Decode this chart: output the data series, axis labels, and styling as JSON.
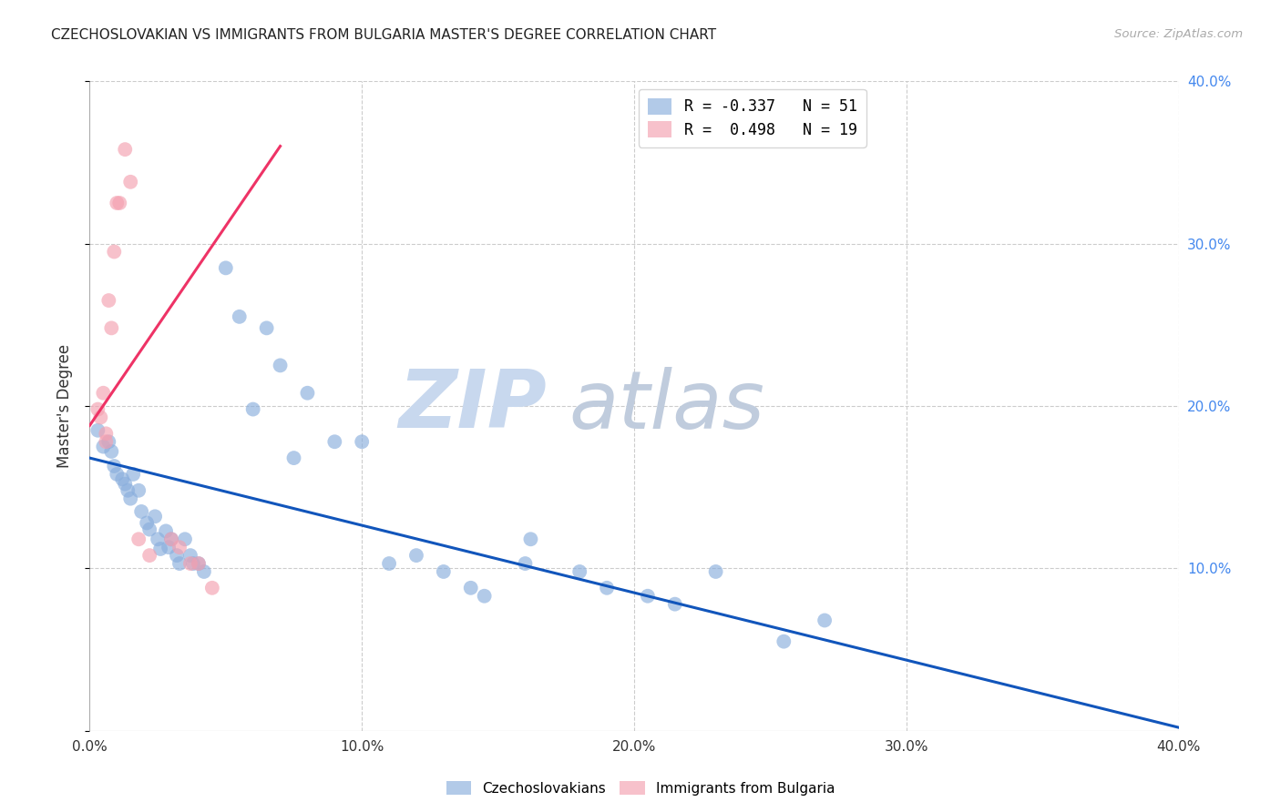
{
  "title": "CZECHOSLOVAKIAN VS IMMIGRANTS FROM BULGARIA MASTER'S DEGREE CORRELATION CHART",
  "source": "Source: ZipAtlas.com",
  "ylabel": "Master's Degree",
  "blue_color": "#89AEDD",
  "pink_color": "#F4A0B0",
  "blue_line_color": "#1155BB",
  "pink_line_color": "#EE3366",
  "grid_color": "#CCCCCC",
  "title_color": "#222222",
  "right_axis_color": "#4488EE",
  "legend_r1": "R = -0.337",
  "legend_n1": "N = 51",
  "legend_r2": "R =  0.498",
  "legend_n2": "N = 19",
  "xlim": [
    0.0,
    0.4
  ],
  "ylim": [
    0.0,
    0.4
  ],
  "blue_scatter": [
    [
      0.003,
      0.185
    ],
    [
      0.005,
      0.175
    ],
    [
      0.007,
      0.178
    ],
    [
      0.008,
      0.172
    ],
    [
      0.009,
      0.163
    ],
    [
      0.01,
      0.158
    ],
    [
      0.012,
      0.155
    ],
    [
      0.013,
      0.152
    ],
    [
      0.014,
      0.148
    ],
    [
      0.015,
      0.143
    ],
    [
      0.016,
      0.158
    ],
    [
      0.018,
      0.148
    ],
    [
      0.019,
      0.135
    ],
    [
      0.021,
      0.128
    ],
    [
      0.022,
      0.124
    ],
    [
      0.024,
      0.132
    ],
    [
      0.025,
      0.118
    ],
    [
      0.026,
      0.112
    ],
    [
      0.028,
      0.123
    ],
    [
      0.029,
      0.113
    ],
    [
      0.03,
      0.118
    ],
    [
      0.032,
      0.108
    ],
    [
      0.033,
      0.103
    ],
    [
      0.035,
      0.118
    ],
    [
      0.037,
      0.108
    ],
    [
      0.038,
      0.103
    ],
    [
      0.04,
      0.103
    ],
    [
      0.042,
      0.098
    ],
    [
      0.05,
      0.285
    ],
    [
      0.055,
      0.255
    ],
    [
      0.06,
      0.198
    ],
    [
      0.065,
      0.248
    ],
    [
      0.07,
      0.225
    ],
    [
      0.075,
      0.168
    ],
    [
      0.08,
      0.208
    ],
    [
      0.09,
      0.178
    ],
    [
      0.1,
      0.178
    ],
    [
      0.11,
      0.103
    ],
    [
      0.12,
      0.108
    ],
    [
      0.13,
      0.098
    ],
    [
      0.14,
      0.088
    ],
    [
      0.145,
      0.083
    ],
    [
      0.16,
      0.103
    ],
    [
      0.162,
      0.118
    ],
    [
      0.18,
      0.098
    ],
    [
      0.19,
      0.088
    ],
    [
      0.205,
      0.083
    ],
    [
      0.215,
      0.078
    ],
    [
      0.23,
      0.098
    ],
    [
      0.27,
      0.068
    ],
    [
      0.255,
      0.055
    ]
  ],
  "pink_scatter": [
    [
      0.003,
      0.198
    ],
    [
      0.004,
      0.193
    ],
    [
      0.005,
      0.208
    ],
    [
      0.006,
      0.183
    ],
    [
      0.006,
      0.178
    ],
    [
      0.007,
      0.265
    ],
    [
      0.008,
      0.248
    ],
    [
      0.009,
      0.295
    ],
    [
      0.01,
      0.325
    ],
    [
      0.011,
      0.325
    ],
    [
      0.013,
      0.358
    ],
    [
      0.015,
      0.338
    ],
    [
      0.018,
      0.118
    ],
    [
      0.022,
      0.108
    ],
    [
      0.03,
      0.118
    ],
    [
      0.033,
      0.113
    ],
    [
      0.037,
      0.103
    ],
    [
      0.04,
      0.103
    ],
    [
      0.045,
      0.088
    ]
  ],
  "blue_trend_x": [
    0.0,
    0.405
  ],
  "blue_trend_y": [
    0.168,
    0.0
  ],
  "pink_trend_x": [
    0.0,
    0.07
  ],
  "pink_trend_y": [
    0.188,
    0.36
  ]
}
